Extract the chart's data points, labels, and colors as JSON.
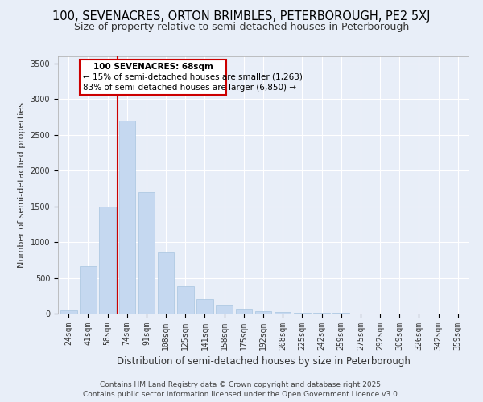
{
  "title1": "100, SEVENACRES, ORTON BRIMBLES, PETERBOROUGH, PE2 5XJ",
  "title2": "Size of property relative to semi-detached houses in Peterborough",
  "xlabel": "Distribution of semi-detached houses by size in Peterborough",
  "ylabel": "Number of semi-detached properties",
  "categories": [
    "24sqm",
    "41sqm",
    "58sqm",
    "74sqm",
    "91sqm",
    "108sqm",
    "125sqm",
    "141sqm",
    "158sqm",
    "175sqm",
    "192sqm",
    "208sqm",
    "225sqm",
    "242sqm",
    "259sqm",
    "275sqm",
    "292sqm",
    "309sqm",
    "326sqm",
    "342sqm",
    "359sqm"
  ],
  "values": [
    40,
    660,
    1500,
    2700,
    1700,
    850,
    380,
    200,
    120,
    65,
    35,
    20,
    15,
    12,
    8,
    5,
    4,
    3,
    2,
    1,
    1
  ],
  "bar_color": "#c5d8f0",
  "bar_edge_color": "#a8c4e0",
  "vline_color": "#cc0000",
  "annotation_title": "100 SEVENACRES: 68sqm",
  "annotation_line1": "← 15% of semi-detached houses are smaller (1,263)",
  "annotation_line2": "83% of semi-detached houses are larger (6,850) →",
  "annotation_box_color": "#cc0000",
  "ylim": [
    0,
    3600
  ],
  "yticks": [
    0,
    500,
    1000,
    1500,
    2000,
    2500,
    3000,
    3500
  ],
  "bg_color": "#e8eef8",
  "footer1": "Contains HM Land Registry data © Crown copyright and database right 2025.",
  "footer2": "Contains public sector information licensed under the Open Government Licence v3.0.",
  "title1_fontsize": 10.5,
  "title2_fontsize": 9,
  "xlabel_fontsize": 8.5,
  "ylabel_fontsize": 8,
  "tick_fontsize": 7,
  "footer_fontsize": 6.5,
  "annotation_title_fontsize": 7.5,
  "annotation_text_fontsize": 7.5
}
